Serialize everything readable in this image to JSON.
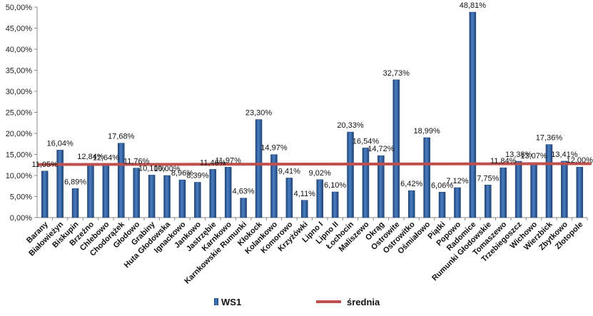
{
  "chart_data": {
    "type": "bar",
    "title": "",
    "xlabel": "",
    "ylabel": "",
    "ylim": [
      0,
      55
    ],
    "yticks": [
      "0,00%",
      "5,00%",
      "10,00%",
      "15,00%",
      "20,00%",
      "25,00%",
      "30,00%",
      "35,00%",
      "40,00%",
      "45,00%",
      "50,00%"
    ],
    "categories": [
      "Barany",
      "Białowieżyn",
      "Biskupin",
      "Brzeźno",
      "Chlebowo",
      "Chodorążek",
      "Głodowo",
      "Grabiny",
      "Huta Głodowska",
      "Ignackowo",
      "Jankowo",
      "Jastrzębie",
      "Karnkowo",
      "Karnkowskie Rumunki",
      "Kłokock",
      "Kolankowo",
      "Komorowo",
      "Krzyżówki",
      "Lipno I",
      "Lipno II",
      "Łochocin",
      "Maliszewo",
      "Okrąg",
      "Ostrowite",
      "Ostrowitko",
      "Ośmiałowo",
      "Piątki",
      "Popowo",
      "Radomice",
      "Rumunki Głodowskie",
      "Tomaszewo",
      "Trzebiegoszcz",
      "Wichowo",
      "Wierzbick",
      "Zbytkowo",
      "Złotopole"
    ],
    "series": [
      {
        "name": "WS1",
        "color": "#2f5f9e",
        "values": [
          11.05,
          16.04,
          6.89,
          12.84,
          12.64,
          17.68,
          11.76,
          10.1,
          10.0,
          8.96,
          8.39,
          11.46,
          11.97,
          4.63,
          23.3,
          14.97,
          9.41,
          4.11,
          9.02,
          6.1,
          20.33,
          16.54,
          14.72,
          32.73,
          6.42,
          18.99,
          6.06,
          7.12,
          48.81,
          7.75,
          11.84,
          13.38,
          13.07,
          17.36,
          13.41,
          12.0
        ],
        "labels": [
          "11,05%",
          "16,04%",
          "6,89%",
          "12,84%",
          "12,64%",
          "17,68%",
          "11,76%",
          "10,10%",
          "10,00%",
          "8,96%",
          "8,39%",
          "11,46%",
          "11,97%",
          "4,63%",
          "23,30%",
          "14,97%",
          "9,41%",
          "4,11%",
          "9,02%",
          "6,10%",
          "20,33%",
          "16,54%",
          "14,72%",
          "32,73%",
          "6,42%",
          "18,99%",
          "6,06%",
          "7,12%",
          "48,81%",
          "7,75%",
          "11,84%",
          "13,38%",
          "13,07%",
          "17,36%",
          "13,41%",
          "12,00%"
        ]
      }
    ],
    "mean_line": {
      "name": "średnia",
      "value": 12.6,
      "color": "#c0504d"
    },
    "legend": {
      "position": "bottom",
      "items": [
        {
          "label": "WS1",
          "kind": "bar",
          "color": "#2f5f9e"
        },
        {
          "label": "średnia",
          "kind": "line",
          "color": "#c0504d"
        }
      ]
    }
  }
}
